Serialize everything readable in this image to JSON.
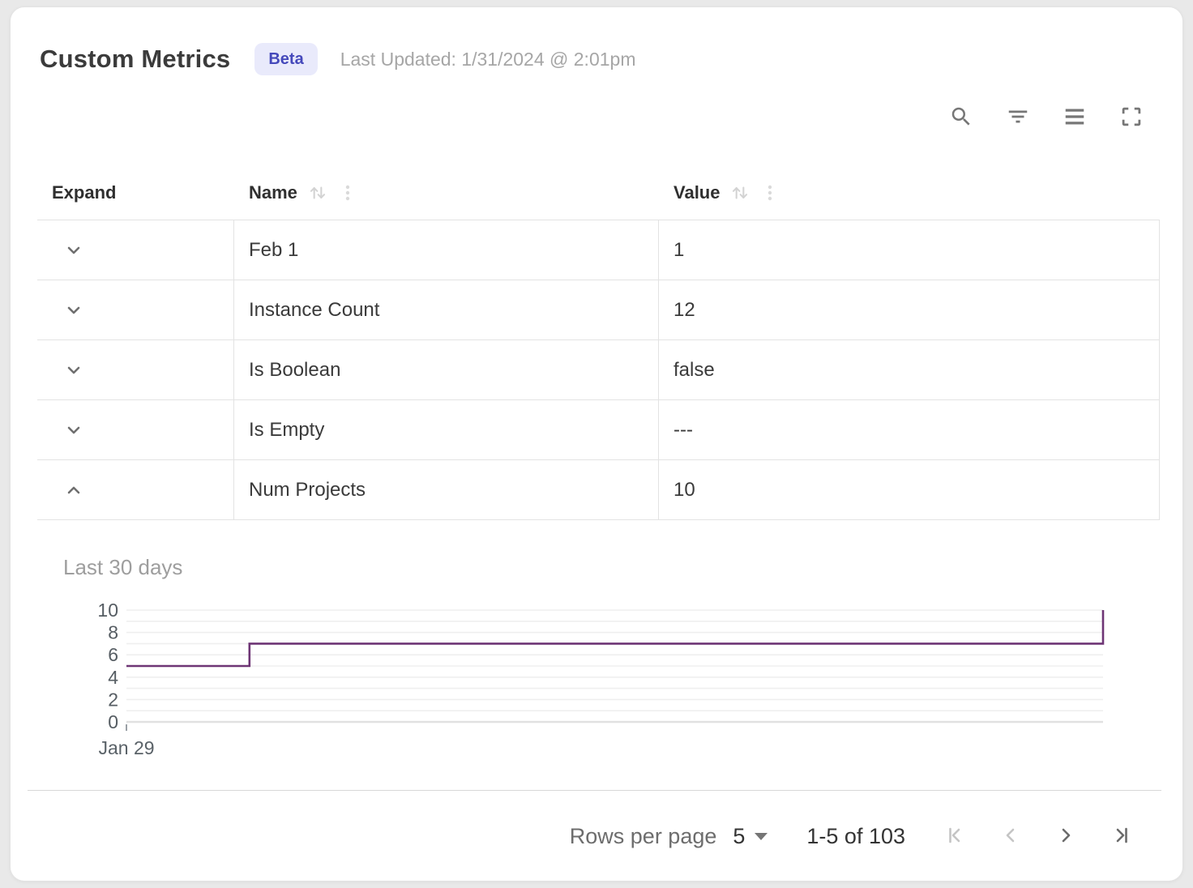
{
  "header": {
    "title": "Custom Metrics",
    "badge": "Beta",
    "last_updated": "Last Updated: 1/31/2024 @ 2:01pm"
  },
  "toolbar": {
    "icons": [
      "search",
      "filter",
      "density",
      "fullscreen"
    ]
  },
  "table": {
    "columns": [
      {
        "label": "Expand",
        "sortable": false
      },
      {
        "label": "Name",
        "sortable": true
      },
      {
        "label": "Value",
        "sortable": true
      }
    ],
    "rows": [
      {
        "name": "Feb 1",
        "value": "1",
        "expanded": false
      },
      {
        "name": "Instance Count",
        "value": "12",
        "expanded": false
      },
      {
        "name": "Is Boolean",
        "value": "false",
        "expanded": false
      },
      {
        "name": "Is Empty",
        "value": "---",
        "expanded": false
      },
      {
        "name": "Num Projects",
        "value": "10",
        "expanded": true
      }
    ]
  },
  "chart_data": {
    "type": "line",
    "line_style": "step",
    "title": "Last 30 days",
    "xlabel": "",
    "ylabel": "",
    "ylim": [
      0,
      10
    ],
    "yticks": [
      0,
      2,
      4,
      6,
      8,
      10
    ],
    "minor_grid_every": 1,
    "grid": true,
    "legend": false,
    "x_tick_labels": [
      {
        "label": "Jan 29",
        "x_frac": 0.0
      }
    ],
    "line_color": "#6e3575",
    "points": [
      {
        "x_frac": 0.0,
        "y": 5
      },
      {
        "x_frac": 0.126,
        "y": 5
      },
      {
        "x_frac": 0.126,
        "y": 7
      },
      {
        "x_frac": 1.0,
        "y": 7
      },
      {
        "x_frac": 1.0,
        "y": 10
      }
    ]
  },
  "pagination": {
    "rows_per_page_label": "Rows per page",
    "rows_per_page_value": "5",
    "range_label": "1-5 of 103",
    "first_enabled": false,
    "prev_enabled": false,
    "next_enabled": true,
    "last_enabled": true
  },
  "colors": {
    "badge_bg": "#e9eafb",
    "badge_text": "#4549bb",
    "chart_line": "#6e3575",
    "grid_line": "#efefef",
    "border": "#e3e3e3",
    "icon_gray": "#767676",
    "disabled_gray": "#c5c5c5"
  }
}
